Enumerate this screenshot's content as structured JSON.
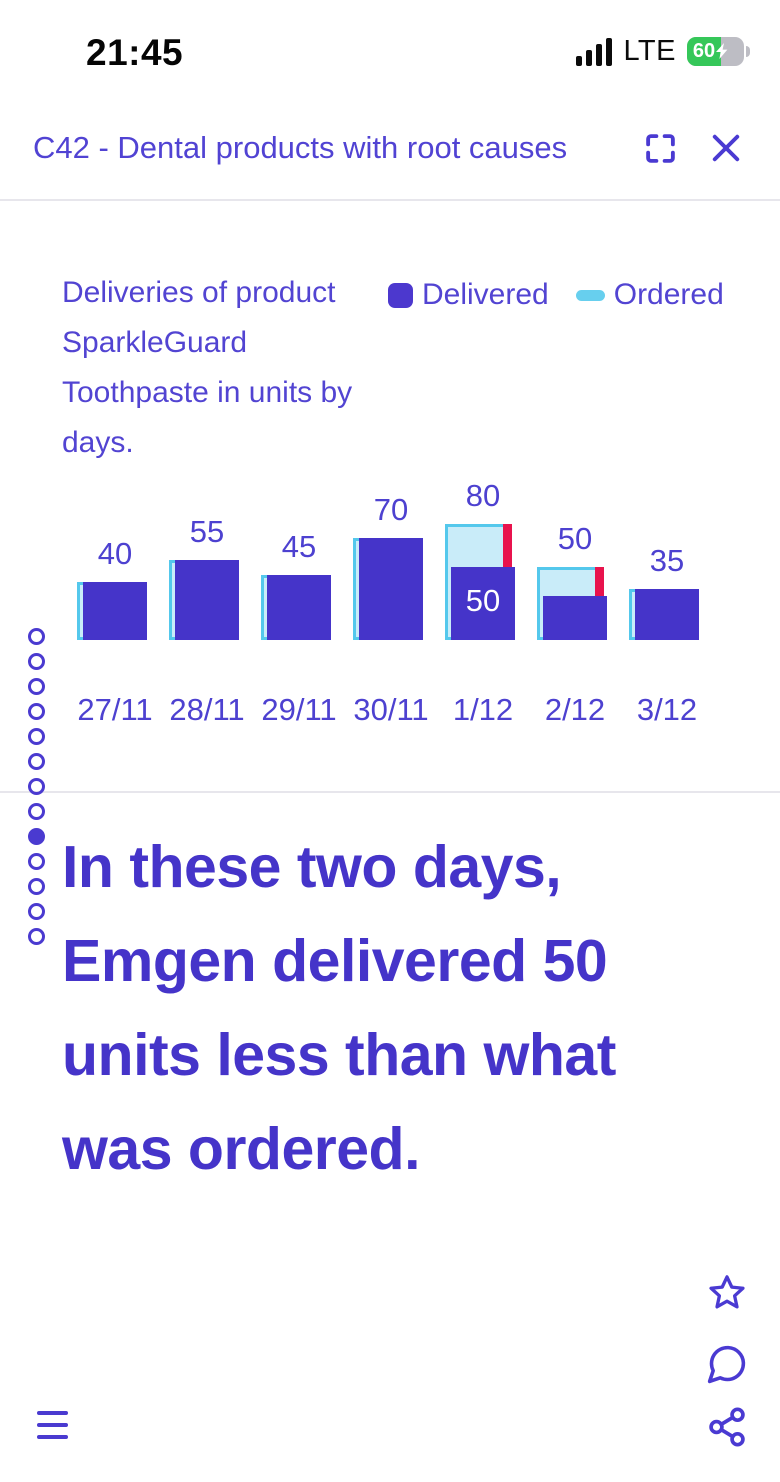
{
  "status_bar": {
    "time": "21:45",
    "network": "LTE",
    "battery_percent": "60",
    "charging": true,
    "battery_color": "#35c759"
  },
  "header": {
    "title": "C42 - Dental products with root causes"
  },
  "chart": {
    "legend": [
      {
        "label": "Delivered",
        "color": "#4c38ce"
      },
      {
        "label": "Ordered",
        "color": "#67cfee"
      }
    ]
  },
  "chart_data": {
    "type": "bar",
    "title": "Deliveries of product SparkleGuard Toothpaste in units by days.",
    "categories": [
      "27/11",
      "28/11",
      "29/11",
      "30/11",
      "1/12",
      "2/12",
      "3/12"
    ],
    "series": [
      {
        "name": "Delivered",
        "values": [
          40,
          55,
          45,
          70,
          50,
          30,
          35
        ],
        "color": "#4534c9"
      },
      {
        "name": "Ordered",
        "values": [
          40,
          55,
          45,
          70,
          80,
          50,
          35
        ],
        "fill": "#c9ecf9",
        "border": "#54c8ec"
      }
    ],
    "top_labels": [
      "40",
      "55",
      "45",
      "70",
      "80",
      "50",
      "35"
    ],
    "inner_labels": [
      "",
      "",
      "",
      "",
      "50",
      "",
      ""
    ],
    "shortfall_color": "#e8134d",
    "xlabel": "",
    "ylabel": "",
    "ylim": [
      0,
      85
    ],
    "grid": false,
    "legend_position": "top-right"
  },
  "pagination": {
    "count": 13,
    "active_index": 8
  },
  "headline": {
    "text": "In these two days, Emgen delivered 50 units less than what was ordered.",
    "lines": [
      "In these two days,",
      "Emgen delivered 50",
      "units less than what",
      "was ordered."
    ],
    "color": "#4534c9"
  },
  "accent_color": "#4a3ad0"
}
